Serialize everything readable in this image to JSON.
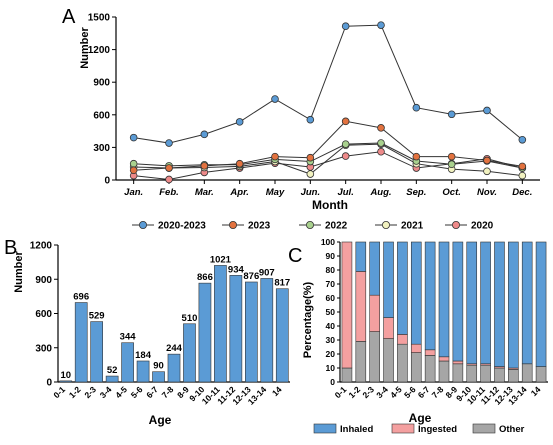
{
  "colors": {
    "blue": "#5b9bd5",
    "red": "#e2723f",
    "green": "#a9d18e",
    "yellow": "#f2f2c0",
    "pink": "#ee8a8a",
    "inhaled": "#5b9bd5",
    "ingested": "#f4a0a0",
    "other": "#a6a6a6"
  },
  "panels": {
    "A": "A",
    "B": "B",
    "C": "C"
  },
  "chart_data": [
    {
      "type": "line",
      "panel": "A",
      "ylabel": "Number",
      "xlabel": "Month",
      "categories": [
        "Jan.",
        "Feb.",
        "Mar.",
        "Apr.",
        "May",
        "Jun.",
        "Jul.",
        "Aug.",
        "Sep.",
        "Oct.",
        "Nov.",
        "Dec."
      ],
      "ylim": [
        0,
        1500
      ],
      "yticks": [
        0,
        300,
        600,
        900,
        1200,
        1500
      ],
      "legend_position": "bottom",
      "series": [
        {
          "name": "2020-2023",
          "color": "#5b9bd5",
          "values": [
            390,
            340,
            420,
            535,
            745,
            555,
            1415,
            1425,
            665,
            605,
            640,
            370
          ]
        },
        {
          "name": "2023",
          "color": "#e2723f",
          "values": [
            90,
            110,
            130,
            150,
            215,
            205,
            540,
            480,
            215,
            215,
            180,
            125
          ]
        },
        {
          "name": "2022",
          "color": "#a9d18e",
          "values": [
            150,
            130,
            140,
            140,
            190,
            170,
            330,
            340,
            175,
            145,
            175,
            110
          ]
        },
        {
          "name": "2021",
          "color": "#f2f2c0",
          "values": [
            120,
            110,
            115,
            125,
            170,
            55,
            320,
            330,
            150,
            100,
            80,
            40
          ]
        },
        {
          "name": "2020",
          "color": "#ee8a8a",
          "values": [
            40,
            5,
            70,
            110,
            155,
            120,
            220,
            260,
            110,
            150,
            195,
            110
          ]
        }
      ]
    },
    {
      "type": "bar",
      "panel": "B",
      "ylabel": "Number",
      "xlabel": "Age",
      "categories": [
        "0-1",
        "1-2",
        "2-3",
        "3-4",
        "4-5",
        "5-6",
        "6-7",
        "7-8",
        "8-9",
        "9-10",
        "10-11",
        "11-12",
        "12-13",
        "13-14",
        "14"
      ],
      "values": [
        10,
        696,
        529,
        52,
        344,
        184,
        90,
        244,
        510,
        866,
        1021,
        934,
        876,
        907,
        817
      ],
      "ylim": [
        0,
        1200
      ],
      "yticks": [
        0,
        300,
        600,
        900,
        1200
      ]
    },
    {
      "type": "bar",
      "stacked": true,
      "panel": "C",
      "ylabel": "Percentage(%)",
      "xlabel": "Age",
      "categories": [
        "0-1",
        "1-2",
        "2-3",
        "3-4",
        "4-5",
        "5-6",
        "6-7",
        "7-8",
        "8-9",
        "9-10",
        "10-11",
        "11-12",
        "12-13",
        "13-14",
        "14"
      ],
      "ylim": [
        0,
        100
      ],
      "yticks": [
        0,
        10,
        20,
        30,
        40,
        50,
        60,
        70,
        80,
        90,
        100
      ],
      "legend_position": "bottom",
      "series": [
        {
          "name": "Other",
          "color": "#a6a6a6",
          "values": [
            10,
            29,
            36,
            31,
            27,
            21,
            19,
            15,
            13,
            12,
            12,
            10,
            9,
            13,
            11
          ]
        },
        {
          "name": "Ingested",
          "color": "#f4a0a0",
          "values": [
            90,
            50,
            26,
            15,
            7,
            6,
            4,
            3,
            2,
            1,
            1,
            1,
            1,
            0,
            0
          ]
        },
        {
          "name": "Inhaled",
          "color": "#5b9bd5",
          "values": [
            0,
            21,
            38,
            54,
            66,
            73,
            77,
            82,
            85,
            87,
            87,
            89,
            90,
            87,
            89
          ]
        }
      ]
    }
  ]
}
